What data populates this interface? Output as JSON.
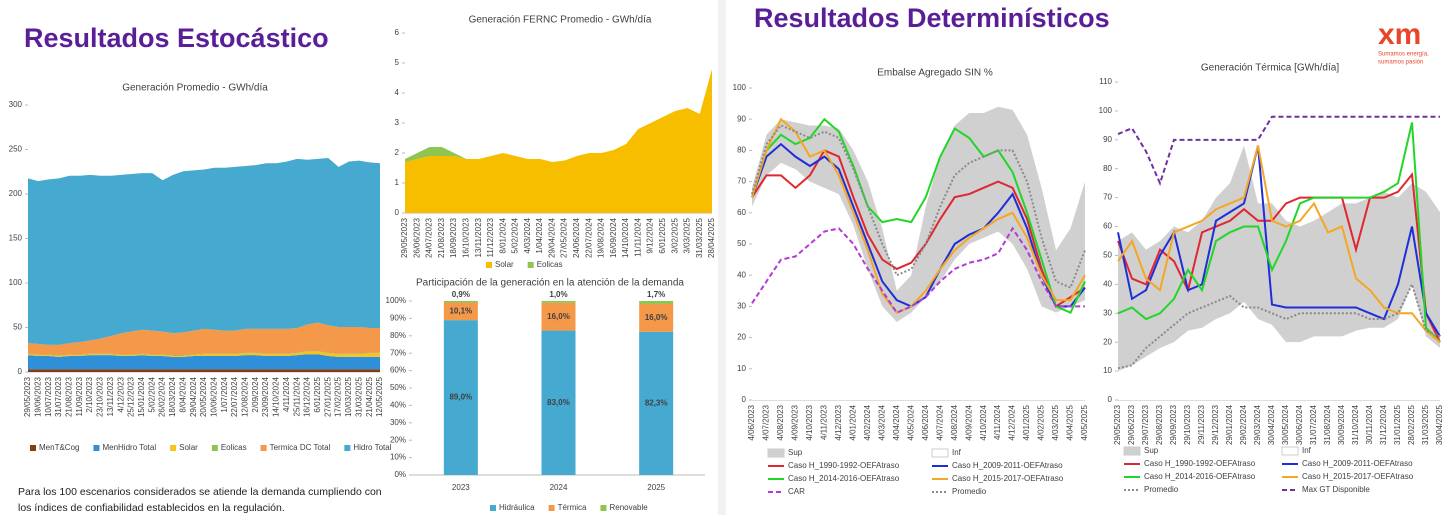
{
  "slides": {
    "left_title": "Resultados Estocástico",
    "right_title": "Resultados Determinísticos",
    "logo": "xm",
    "logo_tagline": [
      "Sumamos energía,",
      "sumamos pasión"
    ],
    "footnote": [
      "Para los 100 escenarios considerados se atiende la demanda  cumpliendo con",
      "los índices de confiabilidad establecidos en la  regulación."
    ]
  },
  "chart_data": [
    {
      "type": "stacked_area",
      "title": "Generación Promedio - GWh/día",
      "categories": [
        "29/05/2023",
        "19/06/2023",
        "10/07/2023",
        "31/07/2023",
        "21/08/2023",
        "11/09/2023",
        "2/10/2023",
        "23/10/2023",
        "13/11/2023",
        "4/12/2023",
        "25/12/2023",
        "15/01/2024",
        "5/02/2024",
        "26/02/2024",
        "18/03/2024",
        "8/04/2024",
        "29/04/2024",
        "20/05/2024",
        "10/06/2024",
        "1/07/2024",
        "22/07/2024",
        "12/08/2024",
        "2/09/2024",
        "23/09/2024",
        "14/10/2024",
        "4/11/2024",
        "25/11/2024",
        "16/12/2024",
        "6/01/2025",
        "27/01/2025",
        "17/02/2025",
        "10/03/2025",
        "31/03/2025",
        "21/04/2025",
        "12/05/2025"
      ],
      "series": [
        {
          "name": "MenT&Cog",
          "color": "#8b3a0f",
          "values": [
            3,
            3,
            3,
            3,
            3,
            3,
            3,
            3,
            3,
            3,
            3,
            3,
            3,
            3,
            3,
            3,
            3,
            3,
            3,
            3,
            3,
            3,
            3,
            3,
            3,
            3,
            3,
            3,
            3,
            3,
            3,
            3,
            3,
            3,
            3
          ]
        },
        {
          "name": "MenHidro Total",
          "color": "#2f8fd8",
          "values": [
            16,
            15,
            15,
            14,
            15,
            15,
            16,
            16,
            16,
            15,
            15,
            16,
            15,
            15,
            14,
            14,
            15,
            15,
            15,
            15,
            15,
            16,
            16,
            15,
            15,
            15,
            16,
            17,
            17,
            15,
            14,
            14,
            14,
            14,
            14
          ]
        },
        {
          "name": "Solar",
          "color": "#f7c31d",
          "values": [
            1,
            1,
            1,
            1,
            1,
            1,
            1,
            1,
            1,
            1,
            1,
            1,
            1,
            1,
            1,
            1,
            1,
            2,
            2,
            2,
            2,
            2,
            2,
            2,
            2,
            2,
            2,
            3,
            3,
            3,
            3,
            3,
            3,
            4,
            4
          ]
        },
        {
          "name": "Eolicas",
          "color": "#8dc54e",
          "values": [
            0.5,
            0.5,
            0.5,
            0.5,
            0.5,
            0.5,
            0.5,
            0.5,
            0.5,
            0.5,
            0.5,
            0.5,
            0.5,
            0.5,
            0.5,
            0.5,
            0.5,
            0.5,
            0.5,
            0.5,
            0.5,
            0.5,
            0.5,
            0.5,
            0.5,
            0.5,
            0.5,
            0.5,
            0.5,
            0.5,
            0.5,
            0.5,
            0.5,
            0.5,
            0.5
          ]
        },
        {
          "name": "Termica DC Total",
          "color": "#f4984a",
          "values": [
            12,
            12,
            11,
            12,
            13,
            14,
            15,
            17,
            20,
            24,
            26,
            27,
            27,
            26,
            25,
            26,
            27,
            28,
            27,
            26,
            26,
            27,
            27,
            28,
            28,
            28,
            28,
            30,
            32,
            31,
            30,
            30,
            30,
            28,
            28
          ]
        },
        {
          "name": "Hidro Total",
          "color": "#45a9d0",
          "values": [
            185,
            183,
            186,
            187,
            188,
            187,
            186,
            183,
            180,
            178,
            177,
            176,
            177,
            170,
            178,
            181,
            180,
            179,
            182,
            183,
            184,
            183,
            184,
            186,
            186,
            188,
            190,
            185,
            184,
            188,
            180,
            186,
            187,
            186,
            185
          ]
        }
      ],
      "ylim": [
        0,
        300
      ],
      "yticks": [
        0,
        50,
        100,
        150,
        200,
        250,
        300
      ],
      "grid": false
    },
    {
      "type": "stacked_area",
      "title": "Generación FERNC Promedio - GWh/día",
      "categories": [
        "29/05/2023",
        "26/06/2023",
        "24/07/2023",
        "21/08/2023",
        "18/09/2023",
        "16/10/2023",
        "13/11/2023",
        "11/12/2023",
        "8/01/2024",
        "5/02/2024",
        "4/03/2024",
        "1/04/2024",
        "29/04/2024",
        "27/05/2024",
        "24/06/2024",
        "22/07/2024",
        "19/08/2024",
        "16/09/2024",
        "14/10/2024",
        "11/11/2024",
        "9/12/2024",
        "6/01/2025",
        "3/02/2025",
        "3/03/2025",
        "31/03/2025",
        "28/04/2025"
      ],
      "series": [
        {
          "name": "Solar",
          "color": "#f7be00",
          "values": [
            1.7,
            1.8,
            1.9,
            1.9,
            1.9,
            1.8,
            1.8,
            1.9,
            2.0,
            1.9,
            1.8,
            1.8,
            1.7,
            1.75,
            1.9,
            2.0,
            2.0,
            2.1,
            2.3,
            2.8,
            3.0,
            3.2,
            3.4,
            3.5,
            3.3,
            4.8
          ]
        },
        {
          "name": "Eolicas",
          "color": "#8dc54e",
          "values": [
            0.1,
            0.2,
            0.3,
            0.3,
            0.1,
            0,
            0,
            0,
            0,
            0,
            0,
            0,
            0,
            0,
            0,
            0,
            0,
            0,
            0,
            0,
            0,
            0,
            0,
            0,
            0,
            0
          ]
        }
      ],
      "ylim": [
        0,
        6
      ],
      "yticks": [
        0,
        1,
        2,
        3,
        4,
        5,
        6
      ],
      "grid": false
    },
    {
      "type": "stacked_bar",
      "title": "Participación de la generación en la atención de la demanda",
      "categories": [
        "2023",
        "2024",
        "2025"
      ],
      "series": [
        {
          "name": "Hidráulica",
          "color": "#45a9d0",
          "values": [
            89.0,
            83.0,
            82.3
          ],
          "value_labels": [
            "89,0%",
            "83,0%",
            "82,3%"
          ]
        },
        {
          "name": "Térmica",
          "color": "#f4984a",
          "values": [
            10.1,
            16.0,
            16.0
          ],
          "value_labels": [
            "10,1%",
            "16,0%",
            "16,0%"
          ]
        },
        {
          "name": "Renovable",
          "color": "#8dc54e",
          "values": [
            0.9,
            1.0,
            1.7
          ],
          "value_labels": [
            "0,9%",
            "1,0%",
            "1,7%"
          ]
        }
      ],
      "ylim": [
        0,
        100
      ],
      "yticks": [
        {
          "value": 0,
          "label": "0%"
        },
        {
          "value": 10,
          "label": "10%"
        },
        {
          "value": 20,
          "label": "20%"
        },
        {
          "value": 30,
          "label": "30%"
        },
        {
          "value": 40,
          "label": "40%"
        },
        {
          "value": 50,
          "label": "50%"
        },
        {
          "value": 60,
          "label": "60%"
        },
        {
          "value": 70,
          "label": "70%"
        },
        {
          "value": 80,
          "label": "80%"
        },
        {
          "value": 90,
          "label": "90%"
        },
        {
          "value": 100,
          "label": "100%"
        }
      ],
      "grid": false
    },
    {
      "type": "line",
      "title": "Embalse Agregado SIN %",
      "categories": [
        "4/06/2023",
        "4/07/2023",
        "4/08/2023",
        "4/09/2023",
        "4/10/2023",
        "4/11/2023",
        "4/12/2023",
        "4/01/2024",
        "4/02/2024",
        "4/03/2024",
        "4/04/2024",
        "4/05/2024",
        "4/06/2024",
        "4/07/2024",
        "4/08/2024",
        "4/09/2024",
        "4/10/2024",
        "4/11/2024",
        "4/12/2024",
        "4/01/2025",
        "4/02/2025",
        "4/03/2025",
        "4/04/2025",
        "4/05/2025"
      ],
      "series": [
        {
          "name": "Sup",
          "color": "#d0d0d0",
          "line_style": "area",
          "values": [
            68,
            85,
            90,
            89,
            88,
            88,
            87,
            80,
            70,
            55,
            35,
            40,
            62,
            78,
            88,
            92,
            92,
            94,
            93,
            85,
            68,
            48,
            55,
            70
          ]
        },
        {
          "name": "Inf",
          "color": "#ffffff",
          "line_style": "area",
          "values": [
            62,
            72,
            76,
            74,
            70,
            68,
            66,
            56,
            42,
            30,
            25,
            28,
            33,
            38,
            45,
            50,
            52,
            54,
            50,
            42,
            30,
            28,
            30,
            32
          ]
        },
        {
          "name": "Caso H_1990-1992-OEFAtraso",
          "color": "#e0262f",
          "line_style": "solid",
          "values": [
            65,
            72,
            72,
            68,
            72,
            80,
            78,
            65,
            53,
            45,
            42,
            44,
            50,
            58,
            65,
            66,
            68,
            70,
            68,
            58,
            42,
            30,
            33,
            36
          ]
        },
        {
          "name": "Caso H_2009-2011-OEFAtraso",
          "color": "#1f2ed8",
          "line_style": "solid",
          "values": [
            65,
            78,
            82,
            78,
            75,
            78,
            74,
            62,
            50,
            38,
            32,
            30,
            33,
            42,
            50,
            53,
            55,
            60,
            66,
            55,
            40,
            30,
            30,
            36
          ]
        },
        {
          "name": "Caso H_2014-2016-OEFAtraso",
          "color": "#22d628",
          "line_style": "solid",
          "values": [
            65,
            80,
            85,
            82,
            84,
            90,
            86,
            75,
            62,
            57,
            58,
            57,
            65,
            78,
            87,
            84,
            78,
            80,
            73,
            60,
            45,
            30,
            28,
            38
          ]
        },
        {
          "name": "Caso H_2015-2017-OEFAtraso",
          "color": "#f5a623",
          "line_style": "solid",
          "values": [
            65,
            80,
            90,
            86,
            78,
            80,
            72,
            60,
            48,
            34,
            28,
            30,
            35,
            42,
            48,
            52,
            55,
            58,
            60,
            52,
            40,
            32,
            32,
            40
          ]
        },
        {
          "name": "CAR",
          "color": "#b23ad6",
          "line_style": "dashed",
          "values": [
            31,
            38,
            45,
            46,
            50,
            54,
            55,
            50,
            42,
            35,
            28,
            30,
            33,
            38,
            42,
            44,
            45,
            47,
            55,
            48,
            38,
            30,
            30,
            30
          ]
        },
        {
          "name": "Promedio",
          "color": "#8a8a8a",
          "line_style": "dotted",
          "values": [
            66,
            82,
            88,
            86,
            84,
            86,
            84,
            74,
            62,
            50,
            40,
            42,
            50,
            62,
            72,
            76,
            78,
            80,
            80,
            70,
            52,
            38,
            36,
            48
          ]
        }
      ],
      "ylim": [
        0,
        100
      ],
      "yticks": [
        0,
        10,
        20,
        30,
        40,
        50,
        60,
        70,
        80,
        90,
        100
      ],
      "grid": false
    },
    {
      "type": "line",
      "title": "Generación Térmica [GWh/día]",
      "categories": [
        "29/05/2023",
        "29/06/2023",
        "29/07/2023",
        "29/08/2023",
        "29/09/2023",
        "29/10/2023",
        "29/11/2023",
        "29/12/2023",
        "29/01/2024",
        "29/02/2024",
        "29/03/2024",
        "30/04/2024",
        "30/05/2024",
        "30/06/2024",
        "31/07/2024",
        "31/08/2024",
        "30/09/2024",
        "31/10/2024",
        "30/11/2024",
        "31/12/2024",
        "31/01/2025",
        "28/02/2025",
        "31/03/2025",
        "30/04/2025"
      ],
      "series": [
        {
          "name": "Sup",
          "color": "#d0d0d0",
          "line_style": "area",
          "values": [
            55,
            58,
            52,
            55,
            60,
            58,
            62,
            70,
            75,
            88,
            68,
            68,
            62,
            60,
            62,
            65,
            68,
            68,
            70,
            72,
            70,
            75,
            72,
            65
          ]
        },
        {
          "name": "Inf",
          "color": "#ffffff",
          "line_style": "area",
          "values": [
            10,
            12,
            15,
            18,
            20,
            24,
            25,
            28,
            30,
            34,
            28,
            26,
            20,
            20,
            22,
            22,
            22,
            24,
            25,
            25,
            28,
            40,
            22,
            18
          ]
        },
        {
          "name": "Caso H_1990-1992-OEFAtraso",
          "color": "#e0262f",
          "line_style": "solid",
          "values": [
            55,
            42,
            40,
            52,
            48,
            38,
            58,
            60,
            62,
            66,
            62,
            62,
            68,
            70,
            70,
            70,
            70,
            52,
            70,
            70,
            72,
            78,
            30,
            20
          ]
        },
        {
          "name": "Caso H_2009-2011-OEFAtraso",
          "color": "#1f2ed8",
          "line_style": "solid",
          "values": [
            58,
            35,
            38,
            50,
            58,
            38,
            40,
            62,
            65,
            68,
            88,
            33,
            32,
            32,
            32,
            32,
            32,
            32,
            30,
            28,
            40,
            60,
            30,
            22
          ]
        },
        {
          "name": "Caso H_2014-2016-OEFAtraso",
          "color": "#22d628",
          "line_style": "solid",
          "values": [
            30,
            32,
            28,
            30,
            35,
            45,
            38,
            55,
            58,
            60,
            60,
            45,
            55,
            68,
            70,
            70,
            70,
            70,
            70,
            72,
            75,
            96,
            25,
            20
          ]
        },
        {
          "name": "Caso H_2015-2017-OEFAtraso",
          "color": "#f5a623",
          "line_style": "solid",
          "values": [
            48,
            55,
            42,
            38,
            58,
            60,
            62,
            66,
            68,
            70,
            88,
            62,
            60,
            62,
            68,
            58,
            60,
            42,
            38,
            32,
            30,
            30,
            24,
            20
          ]
        },
        {
          "name": "Promedio",
          "color": "#8a8a8a",
          "line_style": "dotted",
          "values": [
            11,
            12,
            18,
            22,
            26,
            30,
            32,
            34,
            36,
            32,
            32,
            30,
            28,
            30,
            30,
            30,
            30,
            30,
            28,
            28,
            30,
            40,
            24,
            22
          ]
        },
        {
          "name": "Max GT Disponible",
          "color": "#7030a0",
          "line_style": "dashed",
          "values": [
            92,
            94,
            86,
            75,
            90,
            90,
            90,
            90,
            90,
            90,
            90,
            98,
            98,
            98,
            98,
            98,
            98,
            98,
            98,
            98,
            98,
            98,
            98,
            98
          ]
        }
      ],
      "ylim": [
        0,
        110
      ],
      "yticks": [
        0,
        10,
        20,
        30,
        40,
        50,
        60,
        70,
        80,
        90,
        100,
        110
      ],
      "grid": false
    }
  ]
}
